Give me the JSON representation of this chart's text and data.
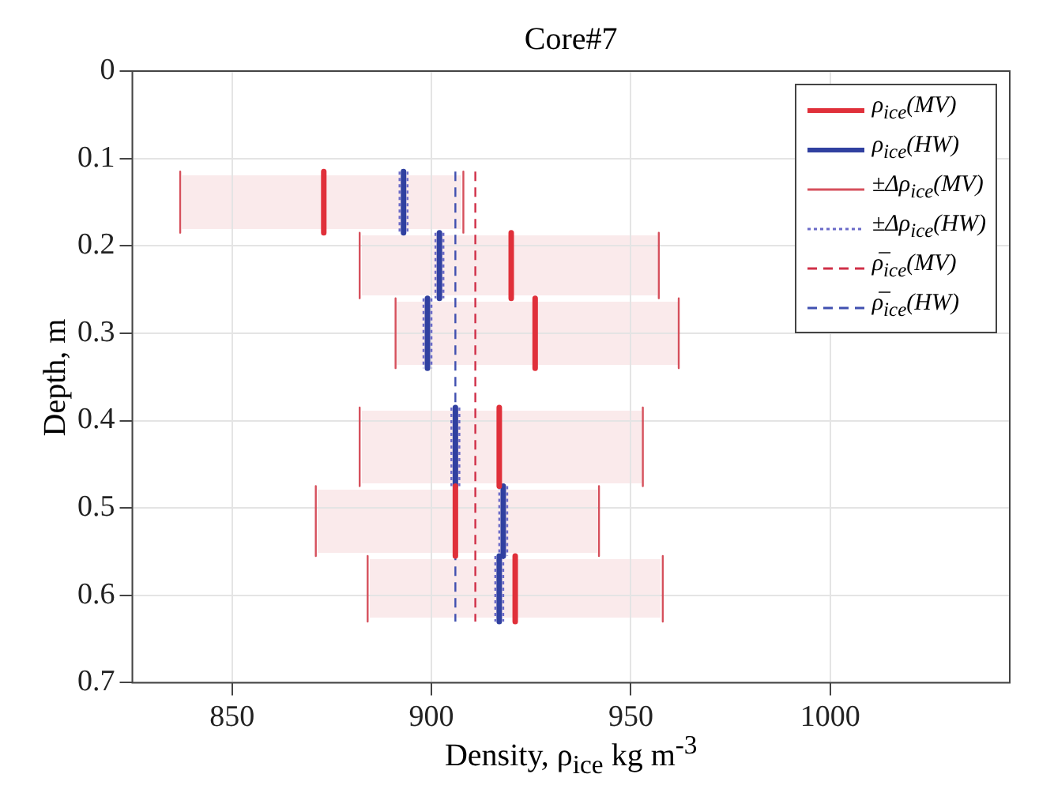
{
  "chart_data": {
    "type": "line",
    "title": "Core#7",
    "xlabel": "Density, ρ$_{ice}$ kg m$^{-3}$",
    "ylabel": "Depth, m",
    "xlim": [
      825,
      1045
    ],
    "xticks": [
      850,
      900,
      950,
      1000
    ],
    "ylim": [
      0.7,
      0
    ],
    "yticks": [
      0,
      0.1,
      0.2,
      0.3,
      0.4,
      0.5,
      0.6,
      0.7
    ],
    "grid": true,
    "legend": "top right",
    "marker": "none",
    "series": [
      {
        "name": "ρ$_{ice}$(MV)",
        "color": "#e0303a",
        "line_style": "solid",
        "x": [
          873,
          873,
          null,
          920,
          920,
          null,
          926,
          926,
          null,
          917,
          917,
          null,
          906,
          906,
          null,
          921,
          921
        ],
        "values": [
          0.115,
          0.185,
          null,
          0.185,
          0.26,
          null,
          0.26,
          0.34,
          null,
          0.385,
          0.475,
          null,
          0.475,
          0.555,
          null,
          0.555,
          0.63
        ]
      },
      {
        "name": "ρ$_{ice}$(HW)",
        "color": "#3040a0",
        "line_style": "solid",
        "x": [
          893,
          893,
          null,
          902,
          902,
          null,
          899,
          899,
          null,
          906,
          906,
          null,
          918,
          918,
          null,
          917,
          917
        ],
        "values": [
          0.115,
          0.185,
          null,
          0.185,
          0.26,
          null,
          0.26,
          0.34,
          null,
          0.385,
          0.475,
          null,
          0.475,
          0.555,
          null,
          0.555,
          0.63
        ]
      },
      {
        "name": "±Δρ$_{ice}$(MV)",
        "color": "#d6505c",
        "line_style": "solid",
        "x": [
          837,
          837,
          null,
          908,
          908,
          null,
          882,
          882,
          null,
          957,
          957,
          null,
          891,
          891,
          null,
          962,
          962,
          null,
          882,
          882,
          null,
          953,
          953,
          null,
          871,
          871,
          null,
          942,
          942,
          null,
          884,
          884,
          null,
          958,
          958
        ],
        "values": [
          0.115,
          0.185,
          null,
          0.115,
          0.185,
          null,
          0.185,
          0.26,
          null,
          0.185,
          0.26,
          null,
          0.26,
          0.34,
          null,
          0.26,
          0.34,
          null,
          0.385,
          0.475,
          null,
          0.385,
          0.475,
          null,
          0.475,
          0.555,
          null,
          0.475,
          0.555,
          null,
          0.555,
          0.63,
          null,
          0.555,
          0.63
        ]
      },
      {
        "name": "±Δρ$_{ice}$(HW)",
        "color": "#6a6ac8",
        "line_style": "dotted",
        "x": [
          892,
          892,
          null,
          894,
          894,
          null,
          901,
          901,
          null,
          903,
          903,
          null,
          898,
          898,
          null,
          900,
          900,
          null,
          905,
          905,
          null,
          907,
          907,
          null,
          917,
          917,
          null,
          919,
          919,
          null,
          916,
          916,
          null,
          918,
          918
        ],
        "values": [
          0.115,
          0.185,
          null,
          0.115,
          0.185,
          null,
          0.185,
          0.26,
          null,
          0.185,
          0.26,
          null,
          0.26,
          0.34,
          null,
          0.26,
          0.34,
          null,
          0.385,
          0.475,
          null,
          0.385,
          0.475,
          null,
          0.475,
          0.555,
          null,
          0.475,
          0.555,
          null,
          0.555,
          0.63,
          null,
          0.555,
          0.63
        ]
      },
      {
        "name": "ρ̅$_{ice}$(MV)",
        "color": "#d03048",
        "line_style": "dashed",
        "x": [
          911,
          911
        ],
        "values": [
          0.115,
          0.63
        ]
      },
      {
        "name": "ρ̅$_{ice}$(HW)",
        "color": "#4050b0",
        "line_style": "dashed",
        "x": [
          906,
          906
        ],
        "values": [
          0.115,
          0.63
        ]
      }
    ]
  }
}
